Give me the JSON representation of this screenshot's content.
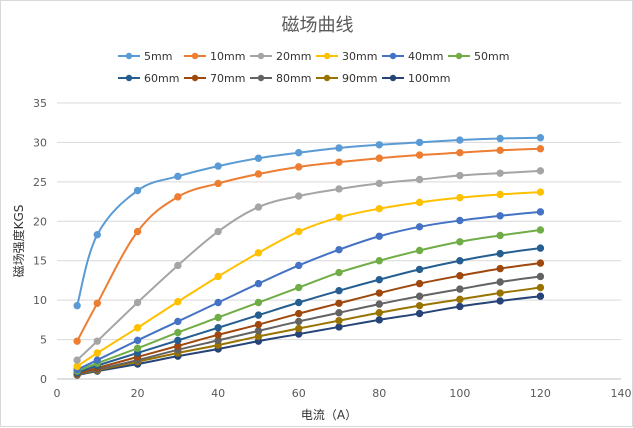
{
  "chart_data": {
    "type": "line",
    "title": "磁场曲线",
    "xlabel": "电流（A）",
    "ylabel": "磁场强度KGS",
    "xlim": [
      0,
      140
    ],
    "ylim": [
      0,
      35
    ],
    "xticks": [
      0,
      20,
      40,
      60,
      80,
      100,
      120,
      140
    ],
    "yticks": [
      0,
      5,
      10,
      15,
      20,
      25,
      30,
      35
    ],
    "grid": "horizontal",
    "legend": "top",
    "x": [
      5,
      10,
      20,
      30,
      40,
      50,
      60,
      70,
      80,
      90,
      100,
      110,
      120
    ],
    "series": [
      {
        "name": "5mm",
        "color": "#5B9BD5",
        "values": [
          9.3,
          18.3,
          23.9,
          25.7,
          27.0,
          28.0,
          28.7,
          29.3,
          29.7,
          30.0,
          30.3,
          30.5,
          30.6
        ]
      },
      {
        "name": "10mm",
        "color": "#ED7D31",
        "values": [
          4.8,
          9.6,
          18.7,
          23.1,
          24.8,
          26.0,
          26.9,
          27.5,
          28.0,
          28.4,
          28.7,
          29.0,
          29.2
        ]
      },
      {
        "name": "20mm",
        "color": "#A5A5A5",
        "values": [
          2.4,
          4.8,
          9.7,
          14.4,
          18.7,
          21.8,
          23.2,
          24.1,
          24.8,
          25.3,
          25.8,
          26.1,
          26.4
        ]
      },
      {
        "name": "30mm",
        "color": "#FFC000",
        "values": [
          1.6,
          3.3,
          6.5,
          9.8,
          13.0,
          16.0,
          18.7,
          20.5,
          21.6,
          22.4,
          23.0,
          23.4,
          23.7
        ]
      },
      {
        "name": "40mm",
        "color": "#4472C4",
        "values": [
          1.2,
          2.4,
          4.9,
          7.3,
          9.7,
          12.1,
          14.4,
          16.4,
          18.1,
          19.3,
          20.1,
          20.7,
          21.2
        ]
      },
      {
        "name": "50mm",
        "color": "#70AD47",
        "values": [
          1.0,
          2.0,
          3.9,
          5.9,
          7.8,
          9.7,
          11.6,
          13.5,
          15.0,
          16.3,
          17.4,
          18.2,
          18.9
        ]
      },
      {
        "name": "60mm",
        "color": "#255E91",
        "values": [
          0.8,
          1.7,
          3.3,
          4.9,
          6.5,
          8.1,
          9.7,
          11.2,
          12.6,
          13.9,
          15.0,
          15.9,
          16.6
        ]
      },
      {
        "name": "70mm",
        "color": "#9E480E",
        "values": [
          0.7,
          1.4,
          2.8,
          4.2,
          5.6,
          6.9,
          8.3,
          9.6,
          10.9,
          12.1,
          13.1,
          14.0,
          14.7
        ]
      },
      {
        "name": "80mm",
        "color": "#636363",
        "values": [
          0.6,
          1.2,
          2.4,
          3.7,
          4.9,
          6.1,
          7.3,
          8.4,
          9.5,
          10.5,
          11.4,
          12.3,
          13.0
        ]
      },
      {
        "name": "90mm",
        "color": "#997300",
        "values": [
          0.55,
          1.1,
          2.2,
          3.3,
          4.3,
          5.4,
          6.4,
          7.4,
          8.4,
          9.3,
          10.1,
          10.9,
          11.6
        ]
      },
      {
        "name": "100mm",
        "color": "#264478",
        "values": [
          0.5,
          1.0,
          1.9,
          2.9,
          3.8,
          4.8,
          5.7,
          6.6,
          7.5,
          8.3,
          9.2,
          9.9,
          10.5
        ]
      }
    ]
  }
}
